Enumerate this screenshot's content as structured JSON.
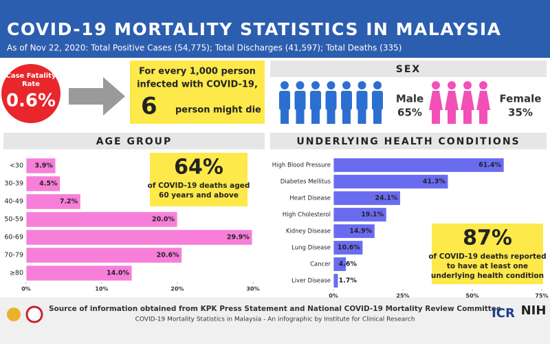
{
  "header": {
    "title": "COVID-19 MORTALITY STATISTICS IN MALAYSIA",
    "subtitle": "As of Nov 22, 2020: Total Positive Cases (54,775); Total Discharges (41,597); Total Deaths (335)"
  },
  "cfr": {
    "label": [
      "Case Fatality",
      "Rate"
    ],
    "value": "0.6%"
  },
  "callout": {
    "lines": [
      "For every 1,000 person",
      "infected with COVID-19,"
    ],
    "number": "6",
    "tail": "person might die"
  },
  "sex": {
    "title": "SEX",
    "male": {
      "label": "Male",
      "value": "65%"
    },
    "female": {
      "label": "Female",
      "value": "35%"
    }
  },
  "chart_data": [
    {
      "type": "bar",
      "orientation": "horizontal",
      "title": "AGE GROUP",
      "color": "#f77fd9",
      "categories": [
        "<30",
        "30-39",
        "40-49",
        "50-59",
        "60-69",
        "70-79",
        "≥80"
      ],
      "values": [
        3.9,
        4.5,
        7.2,
        20.0,
        29.9,
        20.6,
        14.0
      ],
      "value_labels": [
        "3.9%",
        "4.5%",
        "7.2%",
        "20.0%",
        "29.9%",
        "20.6%",
        "14.0%"
      ],
      "xlim": [
        0,
        30
      ],
      "xticks": [
        {
          "value": 0,
          "label": "0%"
        },
        {
          "value": 10,
          "label": "10%"
        },
        {
          "value": 20,
          "label": "20%"
        },
        {
          "value": 30,
          "label": "30%"
        }
      ],
      "annotation": {
        "value": "64%",
        "text": [
          "of COVID-19 deaths aged",
          "60 years and above"
        ]
      }
    },
    {
      "type": "bar",
      "orientation": "horizontal",
      "title": "UNDERLYING HEALTH CONDITIONS",
      "color": "#6a6cf0",
      "categories": [
        "High Blood Pressure",
        "Diabetes Mellitus",
        "Heart Disease",
        "High Cholesterol",
        "Kidney Disease",
        "Lung Disease",
        "Cancer",
        "Liver Disease"
      ],
      "values": [
        61.4,
        41.3,
        24.1,
        19.1,
        14.9,
        10.6,
        4.6,
        1.7
      ],
      "value_labels": [
        "61.4%",
        "41.3%",
        "24.1%",
        "19.1%",
        "14.9%",
        "10.6%",
        "4.6%",
        "1.7%"
      ],
      "xlim": [
        0,
        75
      ],
      "xticks": [
        {
          "value": 0,
          "label": "0%"
        },
        {
          "value": 25,
          "label": "25%"
        },
        {
          "value": 50,
          "label": "50%"
        },
        {
          "value": 75,
          "label": "75%"
        }
      ],
      "annotation": {
        "value": "87%",
        "text": [
          "of COVID-19 deaths reported",
          "to have at least one",
          "underlying health condition"
        ]
      }
    }
  ],
  "footer": {
    "source": "Source of information obtained from KPK Press Statement and National COVID-19 Mortality Review Committee",
    "credit": "COVID-19 Mortality Statistics in Malaysia -  An infographic by Institute for Clinical Research",
    "logos": [
      "ICR",
      "NIH"
    ]
  }
}
